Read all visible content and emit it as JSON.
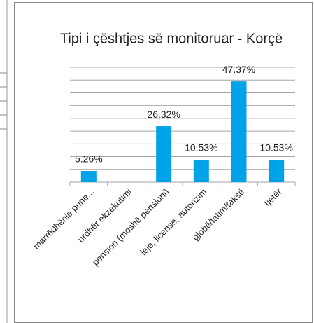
{
  "chart_data": {
    "type": "bar",
    "title": "Tipi i çështjes së monitoruar -  Korçë",
    "categories": [
      "marrëdhënie pune...",
      "urdhër ekzekutimi",
      "pension (moshë pensioni)",
      "leje, licensë, autorizim",
      "gjobë/tatim/taksë",
      "tjetër"
    ],
    "values": [
      5.26,
      0,
      26.32,
      10.53,
      47.37,
      10.53
    ],
    "value_labels": [
      "5.26%",
      null,
      "26.32%",
      "10.53%",
      "47.37%",
      "10.53%"
    ],
    "color": "#00a2e8",
    "ylim": [
      0,
      54
    ],
    "yticks": [
      0,
      6,
      12,
      18,
      24,
      30,
      36,
      42,
      48,
      54
    ],
    "grid": true
  }
}
